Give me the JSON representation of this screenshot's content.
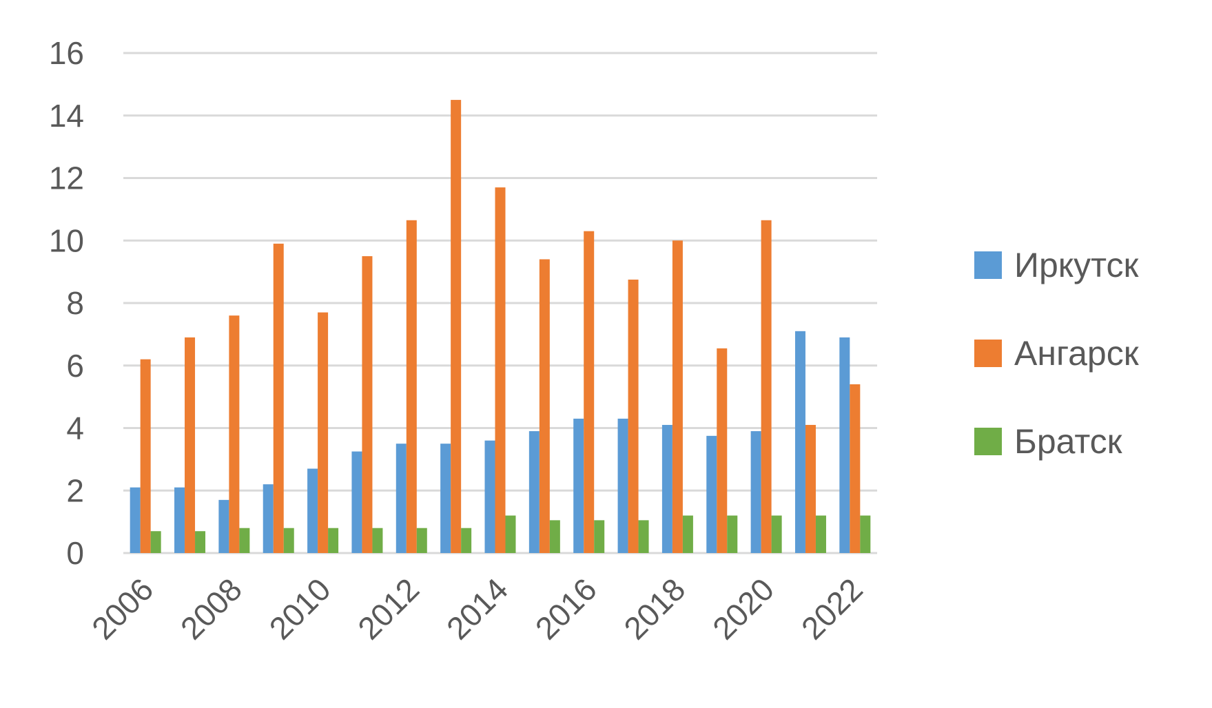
{
  "chart_data": {
    "type": "bar",
    "title": "",
    "xlabel": "",
    "ylabel": "",
    "ylim": [
      0,
      16
    ],
    "yticks": [
      "0",
      "2",
      "4",
      "6",
      "8",
      "10",
      "12",
      "14",
      "16"
    ],
    "grid": true,
    "legend_position": "right",
    "categories": [
      "2006",
      "2007",
      "2008",
      "2009",
      "2010",
      "2011",
      "2012",
      "2013",
      "2014",
      "2015",
      "2016",
      "2017",
      "2018",
      "2019",
      "2020",
      "2021",
      "2022"
    ],
    "xtick_labels": [
      "2006",
      "2008",
      "2010",
      "2012",
      "2014",
      "2016",
      "2018",
      "2020",
      "2022"
    ],
    "series": [
      {
        "name": "Иркутск",
        "color": "#5B9BD5",
        "values": [
          2.1,
          2.1,
          1.7,
          2.2,
          2.7,
          3.25,
          3.5,
          3.5,
          3.6,
          3.9,
          4.3,
          4.3,
          4.1,
          3.75,
          3.9,
          7.1,
          6.9
        ]
      },
      {
        "name": "Ангарск",
        "color": "#ED7D31",
        "values": [
          6.2,
          6.9,
          7.6,
          9.9,
          7.7,
          9.5,
          10.65,
          14.5,
          11.7,
          9.4,
          10.3,
          8.75,
          10.0,
          6.55,
          10.65,
          4.1,
          5.4
        ]
      },
      {
        "name": "Братск",
        "color": "#70AD47",
        "values": [
          0.7,
          0.7,
          0.8,
          0.8,
          0.8,
          0.8,
          0.8,
          0.8,
          1.2,
          1.05,
          1.05,
          1.05,
          1.2,
          1.2,
          1.2,
          1.2,
          1.2
        ]
      }
    ]
  }
}
